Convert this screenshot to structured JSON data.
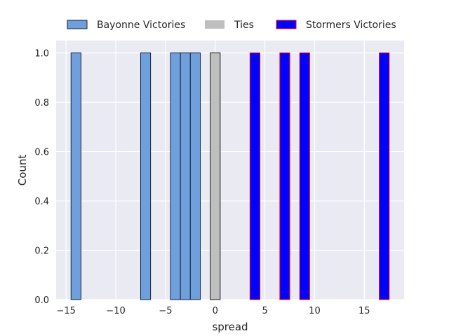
{
  "chart_data": {
    "type": "bar",
    "subtype": "histogram",
    "xlabel": "spread",
    "ylabel": "Count",
    "xlim": [
      -16,
      19
    ],
    "ylim": [
      0,
      1.05
    ],
    "bin_width": 1,
    "x_ticks": [
      -15,
      -10,
      -5,
      0,
      5,
      10,
      15
    ],
    "x_tick_labels": [
      "−15",
      "−10",
      "−5",
      "0",
      "5",
      "10",
      "15"
    ],
    "y_ticks": [
      0,
      0.2,
      0.4,
      0.6,
      0.8,
      1.0
    ],
    "y_tick_labels": [
      "0.0",
      "0.2",
      "0.4",
      "0.6",
      "0.8",
      "1.0"
    ],
    "grid": true,
    "legend_position": "top",
    "series": [
      {
        "name": "Bayonne Victories",
        "fill": "#6fa0dc",
        "edge": "#14213d",
        "bins": [
          {
            "x_start": -14.5,
            "count": 1
          },
          {
            "x_start": -7.5,
            "count": 1
          },
          {
            "x_start": -4.5,
            "count": 1
          },
          {
            "x_start": -3.5,
            "count": 1
          },
          {
            "x_start": -2.5,
            "count": 1
          }
        ]
      },
      {
        "name": "Ties",
        "fill": "#bfbfbf",
        "edge": "#1a1a1a",
        "bins": [
          {
            "x_start": -0.5,
            "count": 1
          }
        ]
      },
      {
        "name": "Stormers Victories",
        "fill": "#0000ff",
        "edge": "#ff0000",
        "bins": [
          {
            "x_start": 3.5,
            "count": 1
          },
          {
            "x_start": 6.5,
            "count": 1
          },
          {
            "x_start": 8.5,
            "count": 1
          },
          {
            "x_start": 16.5,
            "count": 1
          }
        ]
      }
    ]
  }
}
